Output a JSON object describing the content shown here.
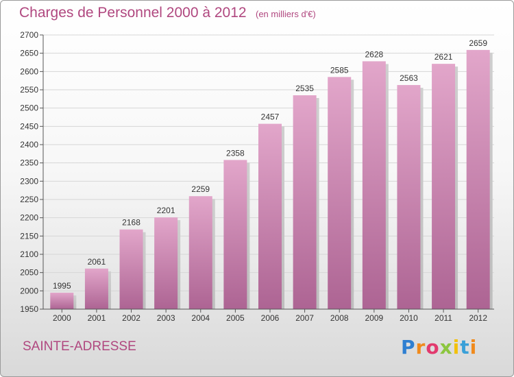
{
  "header": {
    "title": "Charges de Personnel 2000 à 2012",
    "subtitle": "(en milliers d'€)"
  },
  "footer": {
    "place": "SAINTE-ADRESSE",
    "logo_text": "Proxiti"
  },
  "colors": {
    "accent": "#b0477f",
    "bar_top": "#e2a6ca",
    "bar_bottom": "#ad6493",
    "grid": "#d6d6d6"
  },
  "chart_data": {
    "type": "bar",
    "title": "Charges de Personnel 2000 à 2012",
    "subtitle": "(en milliers d'€)",
    "xlabel": "",
    "ylabel": "",
    "categories": [
      "2000",
      "2001",
      "2002",
      "2003",
      "2004",
      "2005",
      "2006",
      "2007",
      "2008",
      "2009",
      "2010",
      "2011",
      "2012"
    ],
    "values": [
      1995,
      2061,
      2168,
      2201,
      2259,
      2358,
      2457,
      2535,
      2585,
      2628,
      2563,
      2621,
      2659
    ],
    "ylim": [
      1950,
      2700
    ],
    "yticks": [
      1950,
      2000,
      2050,
      2100,
      2150,
      2200,
      2250,
      2300,
      2350,
      2400,
      2450,
      2500,
      2550,
      2600,
      2650,
      2700
    ],
    "grid": true,
    "data_labels": true,
    "legend": "none"
  }
}
